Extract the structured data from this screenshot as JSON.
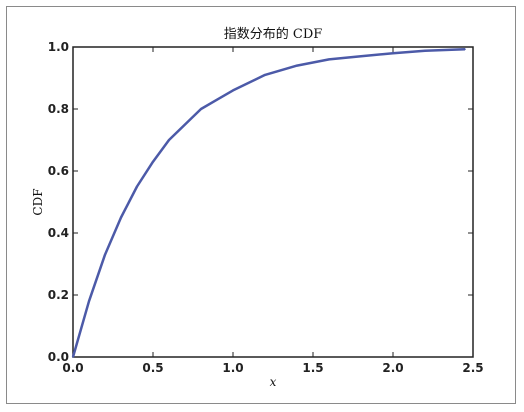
{
  "chart_data": {
    "type": "line",
    "title": "指数分布的 CDF",
    "xlabel": "x",
    "ylabel": "CDF",
    "xlim": [
      0.0,
      2.5
    ],
    "ylim": [
      0.0,
      1.0
    ],
    "x_ticks": [
      "0.0",
      "0.5",
      "1.0",
      "1.5",
      "2.0",
      "2.5"
    ],
    "y_ticks": [
      "0.0",
      "0.2",
      "0.4",
      "0.6",
      "0.8",
      "1.0"
    ],
    "grid": false,
    "series": [
      {
        "color": "#4c5aa8",
        "x": [
          0.0,
          0.1,
          0.2,
          0.3,
          0.4,
          0.5,
          0.6,
          0.7,
          0.8,
          0.9,
          1.0,
          1.2,
          1.4,
          1.6,
          1.8,
          2.0,
          2.2,
          2.45
        ],
        "y": [
          0.0,
          0.18,
          0.33,
          0.45,
          0.55,
          0.63,
          0.7,
          0.75,
          0.8,
          0.83,
          0.86,
          0.91,
          0.94,
          0.96,
          0.97,
          0.98,
          0.988,
          0.993
        ]
      }
    ]
  }
}
